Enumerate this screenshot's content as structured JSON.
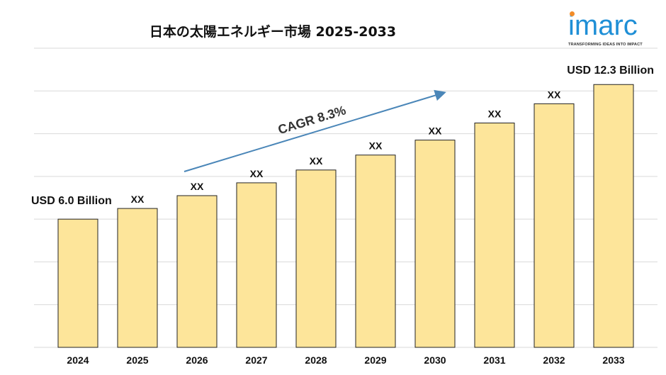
{
  "title": "日本の太陽エネルギー市場 2025-2033",
  "logo": {
    "text": "imarc",
    "tagline": "TRANSFORMING IDEAS INTO IMPACT",
    "brand_color": "#1f8fd6",
    "dot_color": "#f28c28"
  },
  "colors": {
    "bar_fill": "#fde59a",
    "bar_stroke": "#222222",
    "grid": "#d9d9d9",
    "trend_arrow": "#4a86b8"
  },
  "chart_data": {
    "type": "bar",
    "title": "日本の太陽エネルギー市場 2025-2033",
    "categories": [
      "2024",
      "2025",
      "2026",
      "2027",
      "2028",
      "2029",
      "2030",
      "2031",
      "2032",
      "2033"
    ],
    "values": [
      6.0,
      6.5,
      7.1,
      7.7,
      8.3,
      9.0,
      9.7,
      10.5,
      11.4,
      12.3
    ],
    "data_labels": [
      "",
      "XX",
      "XX",
      "XX",
      "XX",
      "XX",
      "XX",
      "XX",
      "XX",
      ""
    ],
    "ylim": [
      0,
      14
    ],
    "grid": true,
    "unit": "USD Billion",
    "callouts": [
      {
        "category": "2024",
        "text": "USD 6.0 Billion"
      },
      {
        "category": "2033",
        "text": "USD 12.3 Billion"
      }
    ],
    "annotation": {
      "text": "CAGR 8.3%"
    }
  }
}
